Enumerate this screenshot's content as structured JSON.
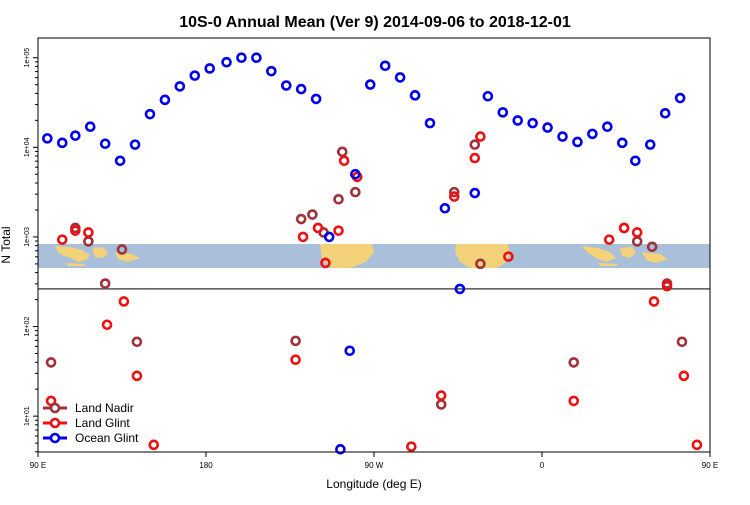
{
  "chart_data": {
    "type": "scatter",
    "title": "10S-0 Annual Mean (Ver 9)   2014-09-06 to 2018-12-01",
    "xlabel": "Longitude (deg E)",
    "ylabel": "N Total",
    "x_scale": "linear",
    "y_scale": "log10",
    "xlim": [
      90,
      450
    ],
    "ylim_log10": [
      0.6,
      5.22
    ],
    "x_ticks": [
      {
        "value": 90,
        "label": "90 E"
      },
      {
        "value": 180,
        "label": "180"
      },
      {
        "value": 270,
        "label": "90 W"
      },
      {
        "value": 360,
        "label": "0"
      },
      {
        "value": 450,
        "label": "90 E"
      }
    ],
    "y_ticks": [
      {
        "log10": 1,
        "label": "1e+01"
      },
      {
        "log10": 2,
        "label": "1e+02"
      },
      {
        "log10": 3,
        "label": "1e+03"
      },
      {
        "log10": 4,
        "label": "1e+04"
      },
      {
        "log10": 5,
        "label": "1e+05"
      }
    ],
    "reference_line_log10": 2.42,
    "map_inset": {
      "log10_top": 2.97,
      "log10_bottom": 2.7,
      "label": "world map strip (equatorial)"
    },
    "legend": {
      "position": "bottom-left"
    },
    "series": [
      {
        "name": "Land Nadir",
        "color": "#A0303A",
        "points": [
          [
            97,
            1.6
          ],
          [
            110,
            3.1
          ],
          [
            117,
            2.95
          ],
          [
            126,
            2.48
          ],
          [
            135,
            2.86
          ],
          [
            143,
            1.83
          ],
          [
            228,
            1.84
          ],
          [
            231,
            3.2
          ],
          [
            237,
            3.25
          ],
          [
            243,
            3.05
          ],
          [
            251,
            3.42
          ],
          [
            253,
            3.95
          ],
          [
            260,
            3.5
          ],
          [
            306,
            1.13
          ],
          [
            313,
            3.5
          ],
          [
            324,
            4.03
          ],
          [
            327,
            2.7
          ],
          [
            377,
            1.6
          ],
          [
            404,
            3.1
          ],
          [
            411,
            2.95
          ],
          [
            419,
            2.89
          ],
          [
            427,
            2.48
          ],
          [
            435,
            1.83
          ]
        ]
      },
      {
        "name": "Land Glint",
        "color": "#EE1111",
        "points": [
          [
            97,
            1.17
          ],
          [
            103,
            2.97
          ],
          [
            110,
            3.07
          ],
          [
            117,
            3.05
          ],
          [
            127,
            2.02
          ],
          [
            136,
            2.28
          ],
          [
            143,
            1.45
          ],
          [
            152,
            0.68
          ],
          [
            228,
            1.63
          ],
          [
            232,
            3.0
          ],
          [
            240,
            3.1
          ],
          [
            244,
            2.71
          ],
          [
            251,
            3.07
          ],
          [
            254,
            3.85
          ],
          [
            261,
            3.67
          ],
          [
            290,
            0.66
          ],
          [
            306,
            1.23
          ],
          [
            313,
            3.45
          ],
          [
            324,
            3.88
          ],
          [
            327,
            4.12
          ],
          [
            342,
            2.78
          ],
          [
            377,
            1.17
          ],
          [
            396,
            2.97
          ],
          [
            404,
            3.1
          ],
          [
            411,
            3.05
          ],
          [
            420,
            2.28
          ],
          [
            427,
            2.45
          ],
          [
            436,
            1.45
          ],
          [
            443,
            0.68
          ]
        ]
      },
      {
        "name": "Ocean Glint",
        "color": "#0000EE",
        "points": [
          [
            95,
            4.1
          ],
          [
            103,
            4.05
          ],
          [
            110,
            4.13
          ],
          [
            118,
            4.23
          ],
          [
            126,
            4.04
          ],
          [
            134,
            3.85
          ],
          [
            142,
            4.03
          ],
          [
            150,
            4.37
          ],
          [
            158,
            4.53
          ],
          [
            166,
            4.68
          ],
          [
            174,
            4.8
          ],
          [
            182,
            4.88
          ],
          [
            191,
            4.95
          ],
          [
            199,
            5.0
          ],
          [
            207,
            5.0
          ],
          [
            215,
            4.85
          ],
          [
            223,
            4.69
          ],
          [
            231,
            4.65
          ],
          [
            239,
            4.54
          ],
          [
            246,
            3.0
          ],
          [
            252,
            0.63
          ],
          [
            257,
            1.73
          ],
          [
            260,
            3.7
          ],
          [
            268,
            4.7
          ],
          [
            276,
            4.91
          ],
          [
            284,
            4.78
          ],
          [
            292,
            4.58
          ],
          [
            300,
            4.27
          ],
          [
            308,
            3.32
          ],
          [
            316,
            2.42
          ],
          [
            324,
            3.49
          ],
          [
            331,
            4.57
          ],
          [
            339,
            4.39
          ],
          [
            347,
            4.3
          ],
          [
            355,
            4.27
          ],
          [
            363,
            4.22
          ],
          [
            371,
            4.12
          ],
          [
            379,
            4.06
          ],
          [
            387,
            4.15
          ],
          [
            395,
            4.23
          ],
          [
            403,
            4.05
          ],
          [
            410,
            3.85
          ],
          [
            418,
            4.03
          ],
          [
            426,
            4.38
          ],
          [
            434,
            4.55
          ]
        ]
      }
    ]
  }
}
